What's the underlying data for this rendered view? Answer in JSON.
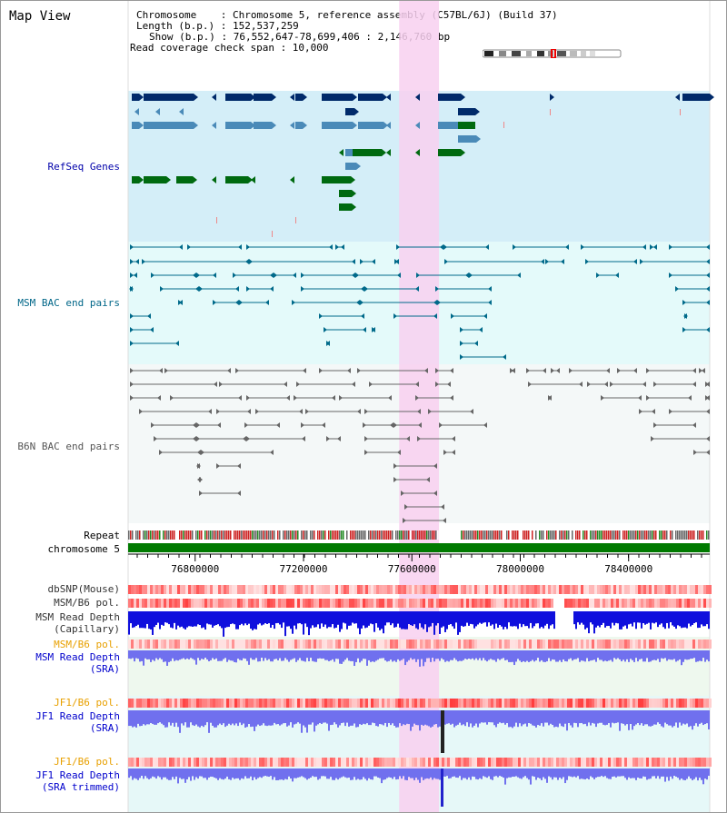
{
  "view_title": "Map View",
  "info": {
    "chromosome_line": "Chromosome    : Chromosome 5, reference assembly (C57BL/6J) (Build 37)",
    "length_line": "Length (b.p.) : 152,537,259",
    "show_line": "Show (b.p.) : 76,552,647-78,699,406 : 2,146,760 bp",
    "span_line": "Read coverage check span : 10,000"
  },
  "tracks": {
    "refseq": {
      "label": "RefSeq Genes",
      "color": "#0000aa"
    },
    "msm_bac": {
      "label": "MSM BAC end pairs",
      "color": "#006688"
    },
    "b6n_bac": {
      "label": "B6N BAC end pairs",
      "color": "#555555"
    },
    "repeat": {
      "label": "Repeat",
      "color": "#000000"
    },
    "chromosome": {
      "label": "chromosome 5",
      "color": "#000000"
    },
    "dbsnp": {
      "label": "dbSNP(Mouse)",
      "color": "#333333"
    },
    "msm_b6_pol": {
      "label": "MSM/B6 pol.",
      "color": "#333333"
    },
    "msm_depth_cap": {
      "label": "MSM Read Depth\n(Capillary)",
      "color": "#333333"
    },
    "msm_b6_pol2": {
      "label": "MSM/B6 pol.",
      "color": "#e8a000"
    },
    "msm_depth_sra": {
      "label": "MSM Read Depth\n(SRA)",
      "color": "#0000cc"
    },
    "jf1_b6_pol": {
      "label": "JF1/B6 pol.",
      "color": "#e8a000"
    },
    "jf1_depth_sra": {
      "label": "JF1 Read Depth\n(SRA)",
      "color": "#0000cc"
    },
    "jf1_b6_pol2": {
      "label": "JF1/B6 pol.",
      "color": "#e8a000"
    },
    "jf1_depth_trim": {
      "label": "JF1 Read Depth\n(SRA trimmed)",
      "color": "#0000cc"
    }
  },
  "axis": {
    "ticks": [
      "76800000",
      "77200000",
      "77600000",
      "78000000",
      "78400000"
    ],
    "tick_positions_bp": [
      76800000,
      77200000,
      77600000,
      78000000,
      78400000
    ],
    "start_bp": 76552647,
    "end_bp": 78699406
  },
  "highlight": {
    "start_bp": 77553000,
    "end_bp": 77700000,
    "color": "#f8d0f0"
  },
  "colors": {
    "refseq_bg": "#d4eef8",
    "msm_bg": "#e4fafa",
    "b6n_bg": "#f4f8f8",
    "gene_dark": "#002a6a",
    "gene_mid": "#4a8ab8",
    "gene_green": "#006a10",
    "msm_pair": "#006a8a",
    "b6n_pair": "#666666",
    "chromosome_bar": "#007a00",
    "pol_red": "#ee2222",
    "depth_blue": "#1010dd",
    "depth_light": "#7070ee"
  }
}
